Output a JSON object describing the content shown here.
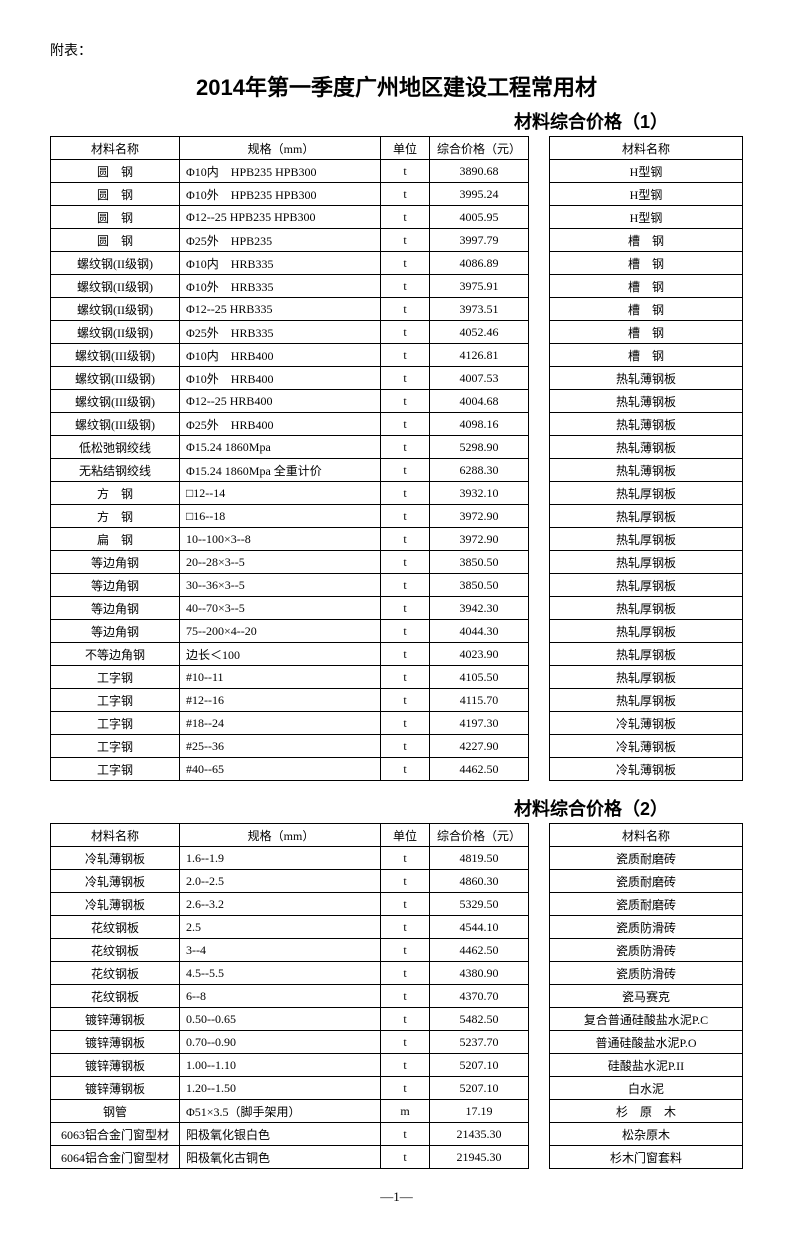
{
  "attach_label": "附表：",
  "main_title": "2014年第一季度广州地区建设工程常用材",
  "section1_title": "材料综合价格（1）",
  "section2_title": "材料综合价格（2）",
  "headers": {
    "name": "材料名称",
    "spec": "规格（mm）",
    "unit": "单位",
    "price": "综合价格（元）",
    "name2": "材料名称"
  },
  "table1": [
    {
      "name": "圆　钢",
      "spec": "Φ10内　HPB235 HPB300",
      "unit": "t",
      "price": "3890.68",
      "name2": "H型钢"
    },
    {
      "name": "圆　钢",
      "spec": "Φ10外　HPB235 HPB300",
      "unit": "t",
      "price": "3995.24",
      "name2": "H型钢"
    },
    {
      "name": "圆　钢",
      "spec": "Φ12--25 HPB235 HPB300",
      "unit": "t",
      "price": "4005.95",
      "name2": "H型钢"
    },
    {
      "name": "圆　钢",
      "spec": "Φ25外　HPB235",
      "unit": "t",
      "price": "3997.79",
      "name2": "槽　钢"
    },
    {
      "name": "螺纹钢(II级钢)",
      "spec": "Φ10内　HRB335",
      "unit": "t",
      "price": "4086.89",
      "name2": "槽　钢"
    },
    {
      "name": "螺纹钢(II级钢)",
      "spec": "Φ10外　HRB335",
      "unit": "t",
      "price": "3975.91",
      "name2": "槽　钢"
    },
    {
      "name": "螺纹钢(II级钢)",
      "spec": "Φ12--25 HRB335",
      "unit": "t",
      "price": "3973.51",
      "name2": "槽　钢"
    },
    {
      "name": "螺纹钢(II级钢)",
      "spec": "Φ25外　HRB335",
      "unit": "t",
      "price": "4052.46",
      "name2": "槽　钢"
    },
    {
      "name": "螺纹钢(III级钢)",
      "spec": "Φ10内　HRB400",
      "unit": "t",
      "price": "4126.81",
      "name2": "槽　钢"
    },
    {
      "name": "螺纹钢(III级钢)",
      "spec": "Φ10外　HRB400",
      "unit": "t",
      "price": "4007.53",
      "name2": "热轧薄钢板"
    },
    {
      "name": "螺纹钢(III级钢)",
      "spec": "Φ12--25 HRB400",
      "unit": "t",
      "price": "4004.68",
      "name2": "热轧薄钢板"
    },
    {
      "name": "螺纹钢(III级钢)",
      "spec": "Φ25外　HRB400",
      "unit": "t",
      "price": "4098.16",
      "name2": "热轧薄钢板"
    },
    {
      "name": "低松弛钢绞线",
      "spec": "Φ15.24 1860Mpa",
      "unit": "t",
      "price": "5298.90",
      "name2": "热轧薄钢板"
    },
    {
      "name": "无粘结钢绞线",
      "spec": "Φ15.24 1860Mpa 全重计价",
      "unit": "t",
      "price": "6288.30",
      "name2": "热轧薄钢板"
    },
    {
      "name": "方　钢",
      "spec": "□12--14",
      "unit": "t",
      "price": "3932.10",
      "name2": "热轧厚钢板"
    },
    {
      "name": "方　钢",
      "spec": "□16--18",
      "unit": "t",
      "price": "3972.90",
      "name2": "热轧厚钢板"
    },
    {
      "name": "扁　钢",
      "spec": "10--100×3--8",
      "unit": "t",
      "price": "3972.90",
      "name2": "热轧厚钢板"
    },
    {
      "name": "等边角钢",
      "spec": "20--28×3--5",
      "unit": "t",
      "price": "3850.50",
      "name2": "热轧厚钢板"
    },
    {
      "name": "等边角钢",
      "spec": "30--36×3--5",
      "unit": "t",
      "price": "3850.50",
      "name2": "热轧厚钢板"
    },
    {
      "name": "等边角钢",
      "spec": "40--70×3--5",
      "unit": "t",
      "price": "3942.30",
      "name2": "热轧厚钢板"
    },
    {
      "name": "等边角钢",
      "spec": "75--200×4--20",
      "unit": "t",
      "price": "4044.30",
      "name2": "热轧厚钢板"
    },
    {
      "name": "不等边角钢",
      "spec": "边长＜100",
      "unit": "t",
      "price": "4023.90",
      "name2": "热轧厚钢板"
    },
    {
      "name": "工字钢",
      "spec": "#10--11",
      "unit": "t",
      "price": "4105.50",
      "name2": "热轧厚钢板"
    },
    {
      "name": "工字钢",
      "spec": "#12--16",
      "unit": "t",
      "price": "4115.70",
      "name2": "热轧厚钢板"
    },
    {
      "name": "工字钢",
      "spec": "#18--24",
      "unit": "t",
      "price": "4197.30",
      "name2": "冷轧薄钢板"
    },
    {
      "name": "工字钢",
      "spec": "#25--36",
      "unit": "t",
      "price": "4227.90",
      "name2": "冷轧薄钢板"
    },
    {
      "name": "工字钢",
      "spec": "#40--65",
      "unit": "t",
      "price": "4462.50",
      "name2": "冷轧薄钢板"
    }
  ],
  "table2": [
    {
      "name": "冷轧薄钢板",
      "spec": "1.6--1.9",
      "unit": "t",
      "price": "4819.50",
      "name2": "瓷质耐磨砖"
    },
    {
      "name": "冷轧薄钢板",
      "spec": "2.0--2.5",
      "unit": "t",
      "price": "4860.30",
      "name2": "瓷质耐磨砖"
    },
    {
      "name": "冷轧薄钢板",
      "spec": "2.6--3.2",
      "unit": "t",
      "price": "5329.50",
      "name2": "瓷质耐磨砖"
    },
    {
      "name": "花纹钢板",
      "spec": "2.5",
      "unit": "t",
      "price": "4544.10",
      "name2": "瓷质防滑砖"
    },
    {
      "name": "花纹钢板",
      "spec": "3--4",
      "unit": "t",
      "price": "4462.50",
      "name2": "瓷质防滑砖"
    },
    {
      "name": "花纹钢板",
      "spec": "4.5--5.5",
      "unit": "t",
      "price": "4380.90",
      "name2": "瓷质防滑砖"
    },
    {
      "name": "花纹钢板",
      "spec": "6--8",
      "unit": "t",
      "price": "4370.70",
      "name2": "瓷马赛克"
    },
    {
      "name": "镀锌薄钢板",
      "spec": "0.50--0.65",
      "unit": "t",
      "price": "5482.50",
      "name2": "复合普通硅酸盐水泥P.C"
    },
    {
      "name": "镀锌薄钢板",
      "spec": "0.70--0.90",
      "unit": "t",
      "price": "5237.70",
      "name2": "普通硅酸盐水泥P.O"
    },
    {
      "name": "镀锌薄钢板",
      "spec": "1.00--1.10",
      "unit": "t",
      "price": "5207.10",
      "name2": "硅酸盐水泥P.II"
    },
    {
      "name": "镀锌薄钢板",
      "spec": "1.20--1.50",
      "unit": "t",
      "price": "5207.10",
      "name2": "白水泥"
    },
    {
      "name": "钢管",
      "spec": "Φ51×3.5（脚手架用）",
      "unit": "m",
      "price": "17.19",
      "name2": "杉　原　木"
    },
    {
      "name": "6063铝合金门窗型材",
      "spec": "阳极氧化银白色",
      "unit": "t",
      "price": "21435.30",
      "name2": "松杂原木"
    },
    {
      "name": "6064铝合金门窗型材",
      "spec": "阳极氧化古铜色",
      "unit": "t",
      "price": "21945.30",
      "name2": "杉木门窗套料"
    }
  ],
  "page_number": "—1—"
}
